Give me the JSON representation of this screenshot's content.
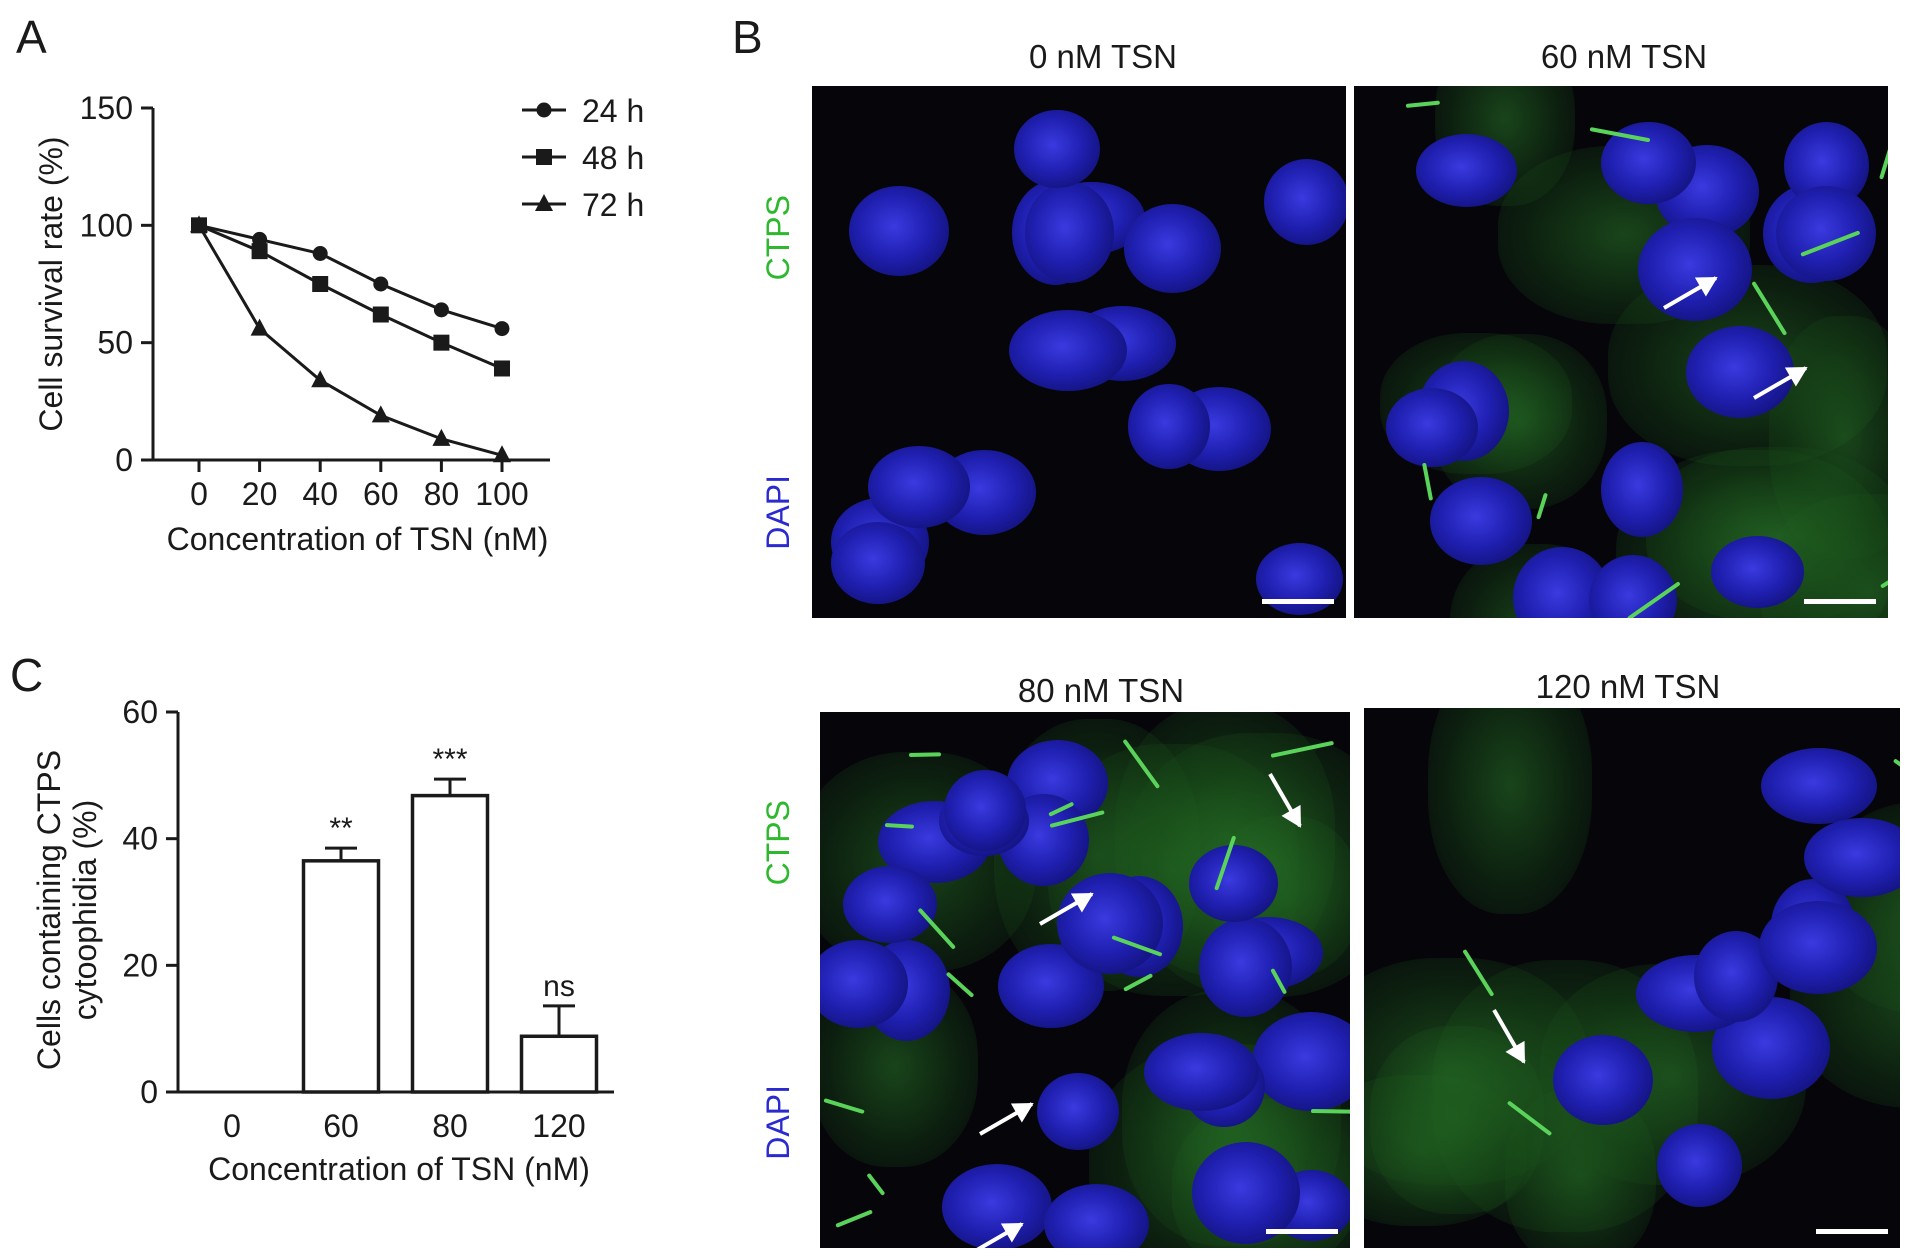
{
  "panels": {
    "a": "A",
    "b": "B",
    "c": "C"
  },
  "chart_data": [
    {
      "panel": "A",
      "type": "line",
      "title": "",
      "xlabel": "Concentration of TSN (nM)",
      "ylabel": "Cell survival rate (%)",
      "x": [
        0,
        20,
        40,
        60,
        80,
        100
      ],
      "xticks": [
        "0",
        "20",
        "40",
        "60",
        "80",
        "100"
      ],
      "ylim": [
        0,
        150
      ],
      "yticks": [
        "0",
        "50",
        "100",
        "150"
      ],
      "legend_position": "top-right",
      "series": [
        {
          "name": "24 h",
          "marker": "circle",
          "values": [
            100,
            94,
            88,
            75,
            64,
            56
          ]
        },
        {
          "name": "48 h",
          "marker": "square",
          "values": [
            100,
            89,
            75,
            62,
            50,
            39
          ]
        },
        {
          "name": "72 h",
          "marker": "triangle",
          "values": [
            100,
            56,
            34,
            19,
            9,
            2
          ]
        }
      ]
    },
    {
      "panel": "C",
      "type": "bar",
      "title": "",
      "xlabel": "Concentration of TSN (nM)",
      "ylabel_lines": [
        "Cells containing CTPS",
        "cytoophidia (%)"
      ],
      "categories": [
        "0",
        "60",
        "80",
        "120"
      ],
      "values": [
        0,
        36.5,
        46.8,
        8.8
      ],
      "errors": [
        0,
        2.0,
        2.6,
        4.8
      ],
      "significance": [
        "",
        "**",
        "***",
        "ns"
      ],
      "ylim": [
        0,
        60
      ],
      "yticks": [
        "0",
        "20",
        "40",
        "60"
      ]
    }
  ],
  "micrographs": [
    {
      "title": "0 nM TSN"
    },
    {
      "title": "60 nM TSN"
    },
    {
      "title": "80 nM TSN"
    },
    {
      "title": "120 nM TSN"
    }
  ],
  "stains": {
    "ctps": "CTPS",
    "dapi": "DAPI"
  },
  "colors": {
    "ctps": "#2db82d",
    "dapi": "#2a2ad0",
    "axis": "#1a1a1a"
  }
}
